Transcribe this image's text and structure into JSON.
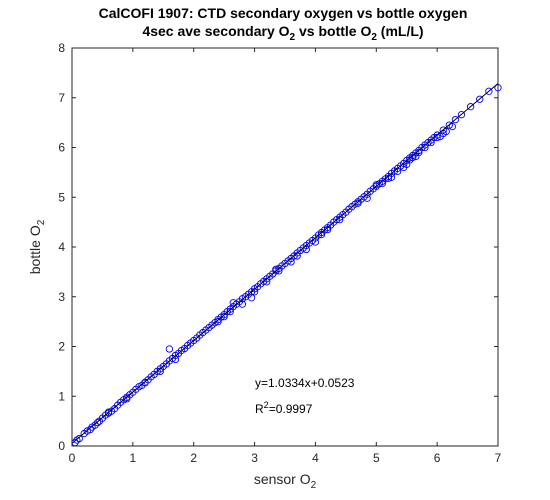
{
  "chart_data": {
    "type": "scatter",
    "title": "CalCOFI 1907: CTD secondary oxygen vs bottle oxygen",
    "subtitle": {
      "pre": "4sec ave secondary O",
      "sub1": "2",
      "mid": " vs bottle O",
      "sub2": "2",
      "post": " (mL/L)"
    },
    "xlabel": {
      "text": "sensor O",
      "sub": "2"
    },
    "ylabel": {
      "text": "bottle O",
      "sub": "2"
    },
    "xlim": [
      0,
      7
    ],
    "ylim": [
      0,
      8
    ],
    "xticks": [
      "0",
      "1",
      "2",
      "3",
      "4",
      "5",
      "6",
      "7"
    ],
    "yticks": [
      "0",
      "1",
      "2",
      "3",
      "4",
      "5",
      "6",
      "7",
      "8"
    ],
    "fit": {
      "slope": 1.0334,
      "intercept": 0.0523,
      "x_range": [
        0,
        7
      ]
    },
    "annotation": {
      "equation": "y=1.0334x+0.0523",
      "r2_prefix": "R",
      "r2_sup": "2",
      "r2_value": "=0.9997"
    },
    "marker_color": "#0000ff",
    "line_color": "#000000",
    "points": [
      [
        0.05,
        0.07
      ],
      [
        0.08,
        0.12
      ],
      [
        0.12,
        0.15
      ],
      [
        0.2,
        0.25
      ],
      [
        0.25,
        0.3
      ],
      [
        0.3,
        0.33
      ],
      [
        0.33,
        0.38
      ],
      [
        0.38,
        0.42
      ],
      [
        0.42,
        0.47
      ],
      [
        0.45,
        0.5
      ],
      [
        0.5,
        0.56
      ],
      [
        0.55,
        0.62
      ],
      [
        0.6,
        0.68
      ],
      [
        0.65,
        0.7
      ],
      [
        0.7,
        0.75
      ],
      [
        0.75,
        0.82
      ],
      [
        0.8,
        0.88
      ],
      [
        0.85,
        0.93
      ],
      [
        0.9,
        0.98
      ],
      [
        0.95,
        1.03
      ],
      [
        1.0,
        1.08
      ],
      [
        1.05,
        1.14
      ],
      [
        1.1,
        1.19
      ],
      [
        1.15,
        1.22
      ],
      [
        1.2,
        1.28
      ],
      [
        1.25,
        1.33
      ],
      [
        1.3,
        1.39
      ],
      [
        1.35,
        1.44
      ],
      [
        1.4,
        1.5
      ],
      [
        1.45,
        1.55
      ],
      [
        1.5,
        1.6
      ],
      [
        1.55,
        1.65
      ],
      [
        1.6,
        1.71
      ],
      [
        1.65,
        1.76
      ],
      [
        1.7,
        1.82
      ],
      [
        1.75,
        1.86
      ],
      [
        1.8,
        1.92
      ],
      [
        1.85,
        1.96
      ],
      [
        1.9,
        2.02
      ],
      [
        1.95,
        2.07
      ],
      [
        2.0,
        2.12
      ],
      [
        2.05,
        2.17
      ],
      [
        2.1,
        2.23
      ],
      [
        2.15,
        2.28
      ],
      [
        2.2,
        2.33
      ],
      [
        2.25,
        2.38
      ],
      [
        2.3,
        2.43
      ],
      [
        2.35,
        2.48
      ],
      [
        2.4,
        2.54
      ],
      [
        2.45,
        2.59
      ],
      [
        2.5,
        2.64
      ],
      [
        2.55,
        2.7
      ],
      [
        2.6,
        2.75
      ],
      [
        2.65,
        2.8
      ],
      [
        2.7,
        2.85
      ],
      [
        2.75,
        2.9
      ],
      [
        2.8,
        2.96
      ],
      [
        2.85,
        3.0
      ],
      [
        2.9,
        3.05
      ],
      [
        2.95,
        3.1
      ],
      [
        3.0,
        3.16
      ],
      [
        3.05,
        3.2
      ],
      [
        3.1,
        3.26
      ],
      [
        3.15,
        3.31
      ],
      [
        3.2,
        3.36
      ],
      [
        3.25,
        3.41
      ],
      [
        3.3,
        3.46
      ],
      [
        3.35,
        3.52
      ],
      [
        3.4,
        3.57
      ],
      [
        3.45,
        3.62
      ],
      [
        3.5,
        3.67
      ],
      [
        3.55,
        3.72
      ],
      [
        3.6,
        3.77
      ],
      [
        3.65,
        3.82
      ],
      [
        3.7,
        3.88
      ],
      [
        3.75,
        3.93
      ],
      [
        3.8,
        3.98
      ],
      [
        3.85,
        4.03
      ],
      [
        3.9,
        4.08
      ],
      [
        3.95,
        4.13
      ],
      [
        4.0,
        4.18
      ],
      [
        4.05,
        4.24
      ],
      [
        4.1,
        4.29
      ],
      [
        4.15,
        4.34
      ],
      [
        4.2,
        4.39
      ],
      [
        4.25,
        4.44
      ],
      [
        4.3,
        4.5
      ],
      [
        4.35,
        4.55
      ],
      [
        4.4,
        4.6
      ],
      [
        4.45,
        4.65
      ],
      [
        4.5,
        4.7
      ],
      [
        4.55,
        4.76
      ],
      [
        4.6,
        4.81
      ],
      [
        4.65,
        4.86
      ],
      [
        4.7,
        4.91
      ],
      [
        4.75,
        4.96
      ],
      [
        4.8,
        5.01
      ],
      [
        4.85,
        5.06
      ],
      [
        4.9,
        5.12
      ],
      [
        4.95,
        5.17
      ],
      [
        5.0,
        5.22
      ],
      [
        5.05,
        5.27
      ],
      [
        5.1,
        5.32
      ],
      [
        5.15,
        5.37
      ],
      [
        5.2,
        5.42
      ],
      [
        5.25,
        5.48
      ],
      [
        5.3,
        5.53
      ],
      [
        5.35,
        5.58
      ],
      [
        5.4,
        5.63
      ],
      [
        5.45,
        5.68
      ],
      [
        5.5,
        5.74
      ],
      [
        5.55,
        5.79
      ],
      [
        5.6,
        5.84
      ],
      [
        5.65,
        5.89
      ],
      [
        5.7,
        5.94
      ],
      [
        5.75,
        6.0
      ],
      [
        5.8,
        6.05
      ],
      [
        5.85,
        6.1
      ],
      [
        5.9,
        6.15
      ],
      [
        5.95,
        6.2
      ],
      [
        6.0,
        6.25
      ],
      [
        6.1,
        6.35
      ],
      [
        6.2,
        6.45
      ],
      [
        6.3,
        6.56
      ],
      [
        6.4,
        6.66
      ],
      [
        6.55,
        6.82
      ],
      [
        6.7,
        6.97
      ],
      [
        6.85,
        7.13
      ],
      [
        7.0,
        7.2
      ],
      [
        0.6,
        0.66
      ],
      [
        1.2,
        1.27
      ],
      [
        1.6,
        1.95
      ],
      [
        1.7,
        1.74
      ],
      [
        2.4,
        2.5
      ],
      [
        2.6,
        2.7
      ],
      [
        2.8,
        2.85
      ],
      [
        2.95,
        2.98
      ],
      [
        3.2,
        3.3
      ],
      [
        3.4,
        3.52
      ],
      [
        3.6,
        3.7
      ],
      [
        3.7,
        3.82
      ],
      [
        3.85,
        3.95
      ],
      [
        4.0,
        4.1
      ],
      [
        4.2,
        4.35
      ],
      [
        4.4,
        4.55
      ],
      [
        4.7,
        4.88
      ],
      [
        4.85,
        4.98
      ],
      [
        5.0,
        5.25
      ],
      [
        5.1,
        5.28
      ],
      [
        5.25,
        5.4
      ],
      [
        5.35,
        5.52
      ],
      [
        5.45,
        5.6
      ],
      [
        5.5,
        5.66
      ],
      [
        5.6,
        5.8
      ],
      [
        5.65,
        5.82
      ],
      [
        5.7,
        5.9
      ],
      [
        5.8,
        6.0
      ],
      [
        5.9,
        6.1
      ],
      [
        6.0,
        6.2
      ],
      [
        6.05,
        6.22
      ],
      [
        6.15,
        6.32
      ],
      [
        6.25,
        6.42
      ],
      [
        0.9,
        0.95
      ],
      [
        1.45,
        1.5
      ],
      [
        2.5,
        2.6
      ],
      [
        3.0,
        3.1
      ],
      [
        2.65,
        2.88
      ],
      [
        3.35,
        3.55
      ],
      [
        4.1,
        4.25
      ],
      [
        5.2,
        5.38
      ],
      [
        5.55,
        5.75
      ],
      [
        6.1,
        6.28
      ]
    ]
  }
}
